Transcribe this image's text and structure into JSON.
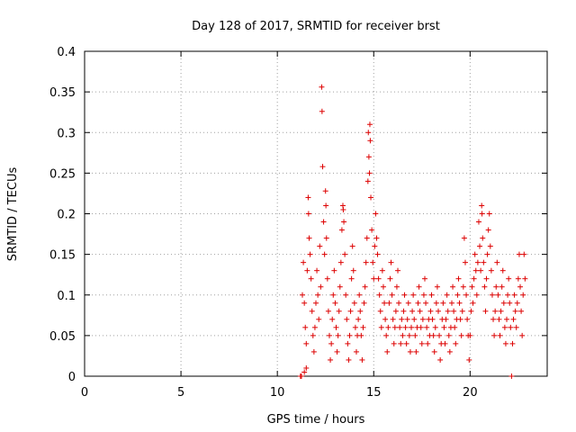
{
  "chart_data": {
    "type": "scatter",
    "title": "Day 128 of 2017, SRMTID for receiver brst",
    "xlabel": "GPS time / hours",
    "ylabel": "SRMTID / TECUs",
    "xlim": [
      0,
      24
    ],
    "ylim": [
      0,
      0.4
    ],
    "xticks": [
      0,
      5,
      10,
      15,
      20
    ],
    "yticks": [
      0,
      0.05,
      0.1,
      0.15,
      0.2,
      0.25,
      0.3,
      0.35,
      0.4
    ],
    "xtick_labels": [
      "0",
      "5",
      "10",
      "15",
      "20"
    ],
    "ytick_labels": [
      "0",
      "0.05",
      "0.1",
      "0.15",
      "0.2",
      "0.25",
      "0.3",
      "0.35",
      "0.4"
    ],
    "grid": true,
    "marker": "+",
    "color": "#dd0000",
    "series": [
      {
        "name": "SRMTID",
        "points": [
          [
            11.2,
            0.0
          ],
          [
            11.25,
            0.0
          ],
          [
            11.4,
            0.005
          ],
          [
            11.5,
            0.01
          ],
          [
            11.3,
            0.1
          ],
          [
            11.35,
            0.14
          ],
          [
            11.4,
            0.09
          ],
          [
            11.45,
            0.06
          ],
          [
            11.5,
            0.04
          ],
          [
            11.55,
            0.13
          ],
          [
            11.6,
            0.22
          ],
          [
            11.62,
            0.2
          ],
          [
            11.65,
            0.17
          ],
          [
            11.7,
            0.15
          ],
          [
            11.75,
            0.12
          ],
          [
            11.8,
            0.08
          ],
          [
            11.85,
            0.05
          ],
          [
            11.9,
            0.03
          ],
          [
            11.95,
            0.06
          ],
          [
            12.0,
            0.09
          ],
          [
            12.05,
            0.13
          ],
          [
            12.1,
            0.1
          ],
          [
            12.15,
            0.07
          ],
          [
            12.2,
            0.16
          ],
          [
            12.25,
            0.11
          ],
          [
            12.3,
            0.356
          ],
          [
            12.32,
            0.326
          ],
          [
            12.35,
            0.258
          ],
          [
            12.4,
            0.19
          ],
          [
            12.45,
            0.15
          ],
          [
            12.5,
            0.228
          ],
          [
            12.52,
            0.21
          ],
          [
            12.55,
            0.17
          ],
          [
            12.6,
            0.12
          ],
          [
            12.65,
            0.08
          ],
          [
            12.7,
            0.05
          ],
          [
            12.75,
            0.02
          ],
          [
            12.8,
            0.04
          ],
          [
            12.85,
            0.07
          ],
          [
            12.9,
            0.1
          ],
          [
            12.95,
            0.13
          ],
          [
            13.0,
            0.09
          ],
          [
            13.05,
            0.06
          ],
          [
            13.1,
            0.03
          ],
          [
            13.15,
            0.05
          ],
          [
            13.2,
            0.08
          ],
          [
            13.25,
            0.11
          ],
          [
            13.3,
            0.14
          ],
          [
            13.35,
            0.18
          ],
          [
            13.4,
            0.21
          ],
          [
            13.42,
            0.205
          ],
          [
            13.45,
            0.19
          ],
          [
            13.5,
            0.15
          ],
          [
            13.55,
            0.1
          ],
          [
            13.6,
            0.07
          ],
          [
            13.65,
            0.04
          ],
          [
            13.7,
            0.02
          ],
          [
            13.75,
            0.05
          ],
          [
            13.8,
            0.08
          ],
          [
            13.85,
            0.12
          ],
          [
            13.9,
            0.16
          ],
          [
            13.95,
            0.13
          ],
          [
            14.0,
            0.09
          ],
          [
            14.05,
            0.06
          ],
          [
            14.1,
            0.03
          ],
          [
            14.15,
            0.05
          ],
          [
            14.2,
            0.07
          ],
          [
            14.25,
            0.1
          ],
          [
            14.3,
            0.08
          ],
          [
            14.35,
            0.05
          ],
          [
            14.4,
            0.02
          ],
          [
            14.45,
            0.06
          ],
          [
            14.5,
            0.09
          ],
          [
            14.55,
            0.11
          ],
          [
            14.6,
            0.14
          ],
          [
            14.65,
            0.17
          ],
          [
            14.7,
            0.24
          ],
          [
            14.72,
            0.3
          ],
          [
            14.75,
            0.27
          ],
          [
            14.78,
            0.25
          ],
          [
            14.8,
            0.31
          ],
          [
            14.82,
            0.29
          ],
          [
            14.85,
            0.22
          ],
          [
            14.9,
            0.18
          ],
          [
            14.95,
            0.14
          ],
          [
            15.0,
            0.12
          ],
          [
            15.05,
            0.16
          ],
          [
            15.1,
            0.2
          ],
          [
            15.15,
            0.17
          ],
          [
            15.2,
            0.15
          ],
          [
            15.25,
            0.12
          ],
          [
            15.3,
            0.1
          ],
          [
            15.35,
            0.08
          ],
          [
            15.4,
            0.06
          ],
          [
            15.45,
            0.13
          ],
          [
            15.5,
            0.11
          ],
          [
            15.55,
            0.09
          ],
          [
            15.6,
            0.07
          ],
          [
            15.65,
            0.05
          ],
          [
            15.7,
            0.03
          ],
          [
            15.75,
            0.06
          ],
          [
            15.8,
            0.09
          ],
          [
            15.85,
            0.12
          ],
          [
            15.9,
            0.14
          ],
          [
            15.95,
            0.1
          ],
          [
            16.0,
            0.07
          ],
          [
            16.05,
            0.04
          ],
          [
            16.1,
            0.06
          ],
          [
            16.15,
            0.08
          ],
          [
            16.2,
            0.11
          ],
          [
            16.25,
            0.13
          ],
          [
            16.3,
            0.09
          ],
          [
            16.35,
            0.06
          ],
          [
            16.4,
            0.04
          ],
          [
            16.45,
            0.07
          ],
          [
            16.5,
            0.05
          ],
          [
            16.55,
            0.08
          ],
          [
            16.6,
            0.1
          ],
          [
            16.65,
            0.06
          ],
          [
            16.7,
            0.04
          ],
          [
            16.75,
            0.07
          ],
          [
            16.8,
            0.09
          ],
          [
            16.85,
            0.05
          ],
          [
            16.9,
            0.03
          ],
          [
            16.95,
            0.06
          ],
          [
            17.0,
            0.08
          ],
          [
            17.05,
            0.1
          ],
          [
            17.1,
            0.07
          ],
          [
            17.15,
            0.05
          ],
          [
            17.2,
            0.03
          ],
          [
            17.25,
            0.06
          ],
          [
            17.3,
            0.09
          ],
          [
            17.35,
            0.11
          ],
          [
            17.4,
            0.08
          ],
          [
            17.45,
            0.06
          ],
          [
            17.5,
            0.04
          ],
          [
            17.55,
            0.07
          ],
          [
            17.6,
            0.1
          ],
          [
            17.65,
            0.12
          ],
          [
            17.7,
            0.09
          ],
          [
            17.75,
            0.06
          ],
          [
            17.8,
            0.04
          ],
          [
            17.85,
            0.07
          ],
          [
            17.9,
            0.05
          ],
          [
            17.95,
            0.08
          ],
          [
            18.0,
            0.1
          ],
          [
            18.05,
            0.07
          ],
          [
            18.1,
            0.05
          ],
          [
            18.15,
            0.03
          ],
          [
            18.2,
            0.06
          ],
          [
            18.25,
            0.09
          ],
          [
            18.3,
            0.11
          ],
          [
            18.35,
            0.08
          ],
          [
            18.4,
            0.05
          ],
          [
            18.45,
            0.02
          ],
          [
            18.5,
            0.04
          ],
          [
            18.55,
            0.07
          ],
          [
            18.6,
            0.09
          ],
          [
            18.65,
            0.06
          ],
          [
            18.7,
            0.04
          ],
          [
            18.75,
            0.07
          ],
          [
            18.8,
            0.1
          ],
          [
            18.85,
            0.08
          ],
          [
            18.9,
            0.05
          ],
          [
            18.95,
            0.03
          ],
          [
            19.0,
            0.06
          ],
          [
            19.05,
            0.09
          ],
          [
            19.1,
            0.11
          ],
          [
            19.15,
            0.08
          ],
          [
            19.2,
            0.06
          ],
          [
            19.25,
            0.04
          ],
          [
            19.3,
            0.07
          ],
          [
            19.35,
            0.1
          ],
          [
            19.4,
            0.12
          ],
          [
            19.45,
            0.09
          ],
          [
            19.5,
            0.07
          ],
          [
            19.55,
            0.05
          ],
          [
            19.6,
            0.08
          ],
          [
            19.65,
            0.11
          ],
          [
            19.7,
            0.17
          ],
          [
            19.75,
            0.14
          ],
          [
            19.8,
            0.1
          ],
          [
            19.85,
            0.07
          ],
          [
            19.9,
            0.05
          ],
          [
            19.95,
            0.02
          ],
          [
            20.0,
            0.05
          ],
          [
            20.05,
            0.08
          ],
          [
            20.1,
            0.11
          ],
          [
            20.15,
            0.09
          ],
          [
            20.2,
            0.12
          ],
          [
            20.25,
            0.15
          ],
          [
            20.3,
            0.13
          ],
          [
            20.35,
            0.1
          ],
          [
            20.4,
            0.14
          ],
          [
            20.45,
            0.19
          ],
          [
            20.5,
            0.16
          ],
          [
            20.55,
            0.13
          ],
          [
            20.6,
            0.21
          ],
          [
            20.62,
            0.2
          ],
          [
            20.65,
            0.17
          ],
          [
            20.7,
            0.14
          ],
          [
            20.75,
            0.11
          ],
          [
            20.8,
            0.08
          ],
          [
            20.85,
            0.12
          ],
          [
            20.9,
            0.15
          ],
          [
            20.95,
            0.18
          ],
          [
            21.0,
            0.2
          ],
          [
            21.05,
            0.16
          ],
          [
            21.1,
            0.13
          ],
          [
            21.15,
            0.1
          ],
          [
            21.2,
            0.07
          ],
          [
            21.25,
            0.05
          ],
          [
            21.3,
            0.08
          ],
          [
            21.35,
            0.11
          ],
          [
            21.4,
            0.14
          ],
          [
            21.45,
            0.1
          ],
          [
            21.5,
            0.07
          ],
          [
            21.55,
            0.05
          ],
          [
            21.6,
            0.08
          ],
          [
            21.65,
            0.11
          ],
          [
            21.7,
            0.13
          ],
          [
            21.75,
            0.09
          ],
          [
            21.8,
            0.06
          ],
          [
            21.85,
            0.04
          ],
          [
            21.9,
            0.07
          ],
          [
            21.95,
            0.1
          ],
          [
            22.0,
            0.12
          ],
          [
            22.05,
            0.09
          ],
          [
            22.1,
            0.06
          ],
          [
            22.15,
            0.0
          ],
          [
            22.2,
            0.04
          ],
          [
            22.25,
            0.07
          ],
          [
            22.3,
            0.1
          ],
          [
            22.35,
            0.08
          ],
          [
            22.4,
            0.06
          ],
          [
            22.45,
            0.09
          ],
          [
            22.5,
            0.12
          ],
          [
            22.55,
            0.15
          ],
          [
            22.6,
            0.11
          ],
          [
            22.65,
            0.08
          ],
          [
            22.7,
            0.05
          ],
          [
            22.75,
            0.1
          ],
          [
            22.8,
            0.15
          ],
          [
            22.85,
            0.12
          ]
        ]
      }
    ]
  }
}
